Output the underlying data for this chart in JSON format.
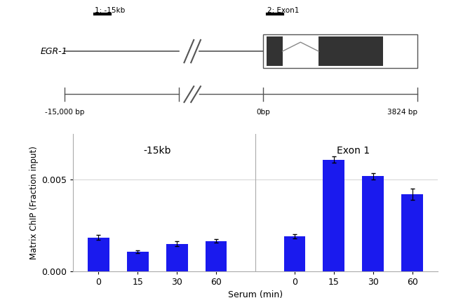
{
  "gene_label": "EGR-1",
  "primer_label_1": "1: -15kb",
  "primer_label_2": "2: Exon1",
  "bp_label_left": "-15,000 bp",
  "bp_label_mid": "0bp",
  "bp_label_right": "3824 bp",
  "group1_label": "-15kb",
  "group2_label": "Exon 1",
  "xlabel": "Serum (min)",
  "ylabel": "Matrix ChIP (Fraction input)",
  "xtick_labels": [
    "0",
    "15",
    "30",
    "60"
  ],
  "bar_color": "#1a1aee",
  "bar_values_g1": [
    0.00185,
    0.00105,
    0.0015,
    0.00165
  ],
  "bar_errors_g1": [
    0.00012,
    8e-05,
    0.00013,
    0.0001
  ],
  "bar_values_g2": [
    0.0019,
    0.0061,
    0.0052,
    0.0042
  ],
  "bar_errors_g2": [
    0.00012,
    0.00018,
    0.00018,
    0.0003
  ],
  "ylim": [
    0,
    0.0075
  ],
  "yticks": [
    0.0,
    0.005
  ],
  "ytick_labels": [
    "0.000",
    "0.005"
  ],
  "background_color": "#ffffff"
}
